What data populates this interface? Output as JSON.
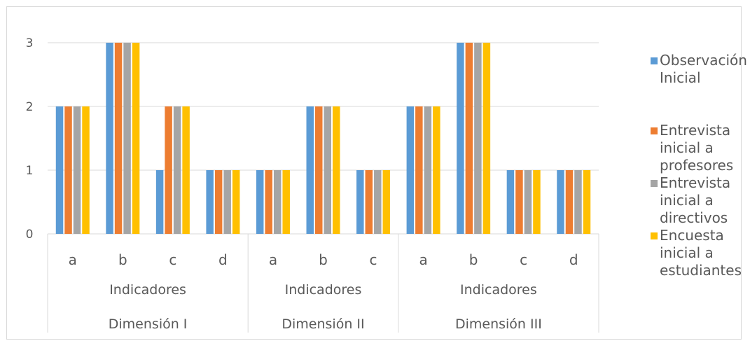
{
  "chart_data": {
    "type": "bar",
    "ylim": [
      0,
      3
    ],
    "yticks": [
      0,
      1,
      2,
      3
    ],
    "grid": true,
    "legend_position": "right",
    "groups": [
      {
        "dimension": "Dimensión I",
        "indicator": "Indicadores",
        "categories": [
          "a",
          "b",
          "c",
          "d"
        ]
      },
      {
        "dimension": "Dimensión II",
        "indicator": "Indicadores",
        "categories": [
          "a",
          "b",
          "c"
        ]
      },
      {
        "dimension": "Dimensión III",
        "indicator": "Indicadores",
        "categories": [
          "a",
          "b",
          "c",
          "d"
        ]
      }
    ],
    "categories": [
      "a",
      "b",
      "c",
      "d",
      "a",
      "b",
      "c",
      "a",
      "b",
      "c",
      "d"
    ],
    "series": [
      {
        "name": "Observación Inicial",
        "color": "#5b9bd5",
        "values": [
          2,
          3,
          1,
          1,
          1,
          2,
          1,
          2,
          3,
          1,
          1
        ]
      },
      {
        "name": "Entrevista inicial a profesores",
        "color": "#ed7d31",
        "values": [
          2,
          3,
          2,
          1,
          1,
          2,
          1,
          2,
          3,
          1,
          1
        ]
      },
      {
        "name": "Entrevista inicial a directivos",
        "color": "#a5a5a5",
        "values": [
          2,
          3,
          2,
          1,
          1,
          2,
          1,
          2,
          3,
          1,
          1
        ]
      },
      {
        "name": "Encuesta inicial a estudiantes",
        "color": "#ffc000",
        "values": [
          2,
          3,
          2,
          1,
          1,
          2,
          1,
          2,
          3,
          1,
          1
        ]
      }
    ]
  }
}
